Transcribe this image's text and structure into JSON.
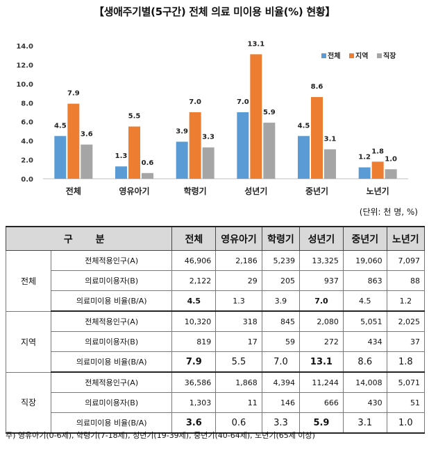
{
  "title": "【생애주기별(5구간) 전체 의료 미이용 비율(%) 현황】",
  "unit": "(단위: 천 명, %)",
  "note": "주) 영유아기(0-6세), 학령기(7-18세), 성년기(19-39세), 중년기(40-64세), 노년기(65세 이상)",
  "chart_data": {
    "type": "bar",
    "categories": [
      "전체",
      "영유아기",
      "학령기",
      "성년기",
      "중년기",
      "노년기"
    ],
    "series": [
      {
        "name": "전체",
        "color": "#5b9bd5",
        "values": [
          4.5,
          1.3,
          3.9,
          7.0,
          4.5,
          1.2
        ],
        "labels": [
          "4.5",
          "1.3",
          "3.9",
          "7.0",
          "4.5",
          "1.2"
        ]
      },
      {
        "name": "지역",
        "color": "#ed7d31",
        "values": [
          7.9,
          5.5,
          7.0,
          13.1,
          8.6,
          1.8
        ],
        "labels": [
          "7.9",
          "5.5",
          "7.0",
          "13.1",
          "8.6",
          "1.8"
        ]
      },
      {
        "name": "직장",
        "color": "#a5a5a5",
        "values": [
          3.6,
          0.6,
          3.3,
          5.9,
          3.1,
          1.0
        ],
        "labels": [
          "3.6",
          "0.6",
          "3.3",
          "5.9",
          "3.1",
          "1.0"
        ]
      }
    ],
    "ylim": [
      0,
      14
    ],
    "yticks": [
      "0.0",
      "2.0",
      "4.0",
      "6.0",
      "8.0",
      "10.0",
      "12.0",
      "14.0"
    ],
    "legend": "top-right",
    "grid": false
  },
  "table": {
    "header": {
      "group": "구 분",
      "cols": [
        "전체",
        "영유아기",
        "학령기",
        "성년기",
        "중년기",
        "노년기"
      ]
    },
    "groups": [
      {
        "name": "전체",
        "rows": [
          {
            "label": "전체적용인구(A)",
            "values": [
              "46,906",
              "2,186",
              "5,239",
              "13,325",
              "19,060",
              "7,097"
            ]
          },
          {
            "label": "의료미이용자(B)",
            "values": [
              "2,122",
              "29",
              "205",
              "937",
              "863",
              "88"
            ]
          },
          {
            "label": "의료미이용 비율(B/A)",
            "values": [
              "4.5",
              "1.3",
              "3.9",
              "7.0",
              "4.5",
              "1.2"
            ]
          }
        ]
      },
      {
        "name": "지역",
        "rows": [
          {
            "label": "전체적용인구(A)",
            "values": [
              "10,320",
              "318",
              "845",
              "2,080",
              "5,051",
              "2,025"
            ]
          },
          {
            "label": "의료미이용자(B)",
            "values": [
              "819",
              "17",
              "59",
              "272",
              "434",
              "37"
            ]
          },
          {
            "label": "의료미이용 비율(B/A)",
            "values": [
              "7.9",
              "5.5",
              "7.0",
              "13.1",
              "8.6",
              "1.8"
            ]
          }
        ]
      },
      {
        "name": "직장",
        "rows": [
          {
            "label": "전체적용인구(A)",
            "values": [
              "36,586",
              "1,868",
              "4,394",
              "11,244",
              "14,008",
              "5,071"
            ]
          },
          {
            "label": "의료미이용자(B)",
            "values": [
              "1,303",
              "11",
              "146",
              "666",
              "430",
              "51"
            ]
          },
          {
            "label": "의료미이용 비율(B/A)",
            "values": [
              "3.6",
              "0.6",
              "3.3",
              "5.9",
              "3.1",
              "1.0"
            ]
          }
        ]
      }
    ]
  }
}
